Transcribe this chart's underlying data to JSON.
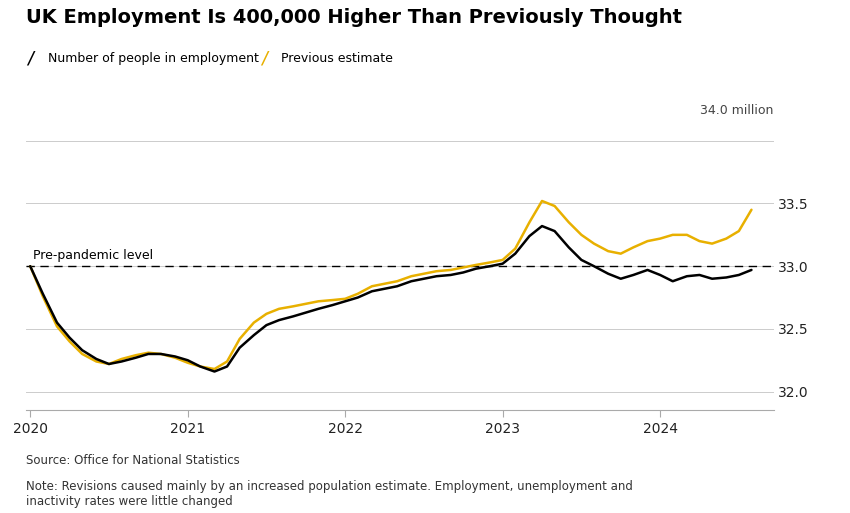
{
  "title": "UK Employment Is 400,000 Higher Than Previously Thought",
  "legend_entries": [
    "Number of people in employment",
    "Previous estimate"
  ],
  "line_colors": [
    "#000000",
    "#E8B000"
  ],
  "pre_pandemic_level": 33.0,
  "pre_pandemic_label": "Pre-pandemic level",
  "ylabel_text": "34.0 million",
  "ylim": [
    31.85,
    34.1
  ],
  "yticks": [
    32.0,
    32.5,
    33.0,
    33.5
  ],
  "source_text": "Source: Office for National Statistics",
  "note_text": "Note: Revisions caused mainly by an increased population estimate. Employment, unemployment and\ninactivity rates were little changed",
  "background_color": "#ffffff",
  "new_series_x": [
    2020.0,
    2020.08,
    2020.17,
    2020.25,
    2020.33,
    2020.42,
    2020.5,
    2020.58,
    2020.67,
    2020.75,
    2020.83,
    2020.92,
    2021.0,
    2021.08,
    2021.17,
    2021.25,
    2021.33,
    2021.42,
    2021.5,
    2021.58,
    2021.67,
    2021.75,
    2021.83,
    2021.92,
    2022.0,
    2022.08,
    2022.17,
    2022.25,
    2022.33,
    2022.42,
    2022.5,
    2022.58,
    2022.67,
    2022.75,
    2022.83,
    2022.92,
    2023.0,
    2023.08,
    2023.17,
    2023.25,
    2023.33,
    2023.42,
    2023.5,
    2023.58,
    2023.67,
    2023.75,
    2023.83,
    2023.92,
    2024.0,
    2024.08,
    2024.17,
    2024.25,
    2024.33,
    2024.42,
    2024.5,
    2024.58
  ],
  "new_series_y": [
    33.0,
    32.78,
    32.55,
    32.43,
    32.33,
    32.26,
    32.22,
    32.24,
    32.27,
    32.3,
    32.3,
    32.28,
    32.25,
    32.2,
    32.16,
    32.2,
    32.35,
    32.45,
    32.53,
    32.57,
    32.6,
    32.63,
    32.66,
    32.69,
    32.72,
    32.75,
    32.8,
    32.82,
    32.84,
    32.88,
    32.9,
    32.92,
    32.93,
    32.95,
    32.98,
    33.0,
    33.02,
    33.1,
    33.24,
    33.32,
    33.28,
    33.15,
    33.05,
    33.0,
    32.94,
    32.9,
    32.93,
    32.97,
    32.93,
    32.88,
    32.92,
    32.93,
    32.9,
    32.91,
    32.93,
    32.97
  ],
  "old_series_x": [
    2020.0,
    2020.08,
    2020.17,
    2020.25,
    2020.33,
    2020.42,
    2020.5,
    2020.58,
    2020.67,
    2020.75,
    2020.83,
    2020.92,
    2021.0,
    2021.08,
    2021.17,
    2021.25,
    2021.33,
    2021.42,
    2021.5,
    2021.58,
    2021.67,
    2021.75,
    2021.83,
    2021.92,
    2022.0,
    2022.08,
    2022.17,
    2022.25,
    2022.33,
    2022.42,
    2022.5,
    2022.58,
    2022.67,
    2022.75,
    2022.83,
    2022.92,
    2023.0,
    2023.08,
    2023.17,
    2023.25,
    2023.33,
    2023.42,
    2023.5,
    2023.58,
    2023.67,
    2023.75,
    2023.83,
    2023.92,
    2024.0,
    2024.08,
    2024.17,
    2024.25,
    2024.33,
    2024.42,
    2024.5,
    2024.58
  ],
  "old_series_y": [
    33.0,
    32.76,
    32.52,
    32.4,
    32.3,
    32.24,
    32.22,
    32.26,
    32.29,
    32.31,
    32.3,
    32.27,
    32.23,
    32.2,
    32.18,
    32.24,
    32.42,
    32.55,
    32.62,
    32.66,
    32.68,
    32.7,
    32.72,
    32.73,
    32.74,
    32.78,
    32.84,
    32.86,
    32.88,
    32.92,
    32.94,
    32.96,
    32.97,
    32.99,
    33.01,
    33.03,
    33.05,
    33.14,
    33.35,
    33.52,
    33.48,
    33.35,
    33.25,
    33.18,
    33.12,
    33.1,
    33.15,
    33.2,
    33.22,
    33.25,
    33.25,
    33.2,
    33.18,
    33.22,
    33.28,
    33.45
  ]
}
